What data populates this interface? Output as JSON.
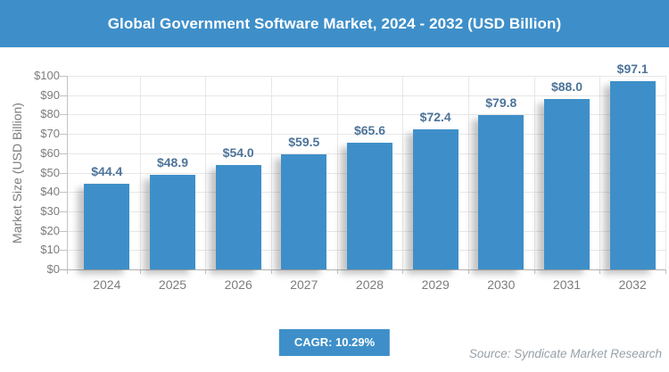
{
  "header": {
    "title": "Global Government Software Market, 2024 - 2032 (USD Billion)"
  },
  "chart_data": {
    "type": "bar",
    "title": "Global Government Software Market, 2024 - 2032 (USD Billion)",
    "categories": [
      "2024",
      "2025",
      "2026",
      "2027",
      "2028",
      "2029",
      "2030",
      "2031",
      "2032"
    ],
    "values": [
      44.4,
      48.9,
      54.0,
      59.5,
      65.6,
      72.4,
      79.8,
      88.0,
      97.1
    ],
    "value_labels": [
      "$44.4",
      "$48.9",
      "$54.0",
      "$59.5",
      "$65.6",
      "$72.4",
      "$79.8",
      "$88.0",
      "$97.1"
    ],
    "xlabel": "",
    "ylabel": "Market Size (USD Billion)",
    "ylim": [
      0,
      100
    ],
    "ytick_step": 10,
    "ytick_labels": [
      "$0",
      "$10",
      "$20",
      "$30",
      "$40",
      "$50",
      "$60",
      "$70",
      "$80",
      "$90",
      "$100"
    ],
    "grid": true,
    "legend": "none",
    "bar_color": "#3E8FC9"
  },
  "footer": {
    "cagr_label": "CAGR: 10.29%",
    "source": "Source: Syndicate Market Research"
  },
  "colors": {
    "accent_blue": "#3E8FC9",
    "value_label": "#4D7499",
    "axis_text": "#7C7C7C",
    "grid_line": "#E7E7E7",
    "axis_line": "#C2C2C2",
    "source_text": "#98A1A8"
  }
}
